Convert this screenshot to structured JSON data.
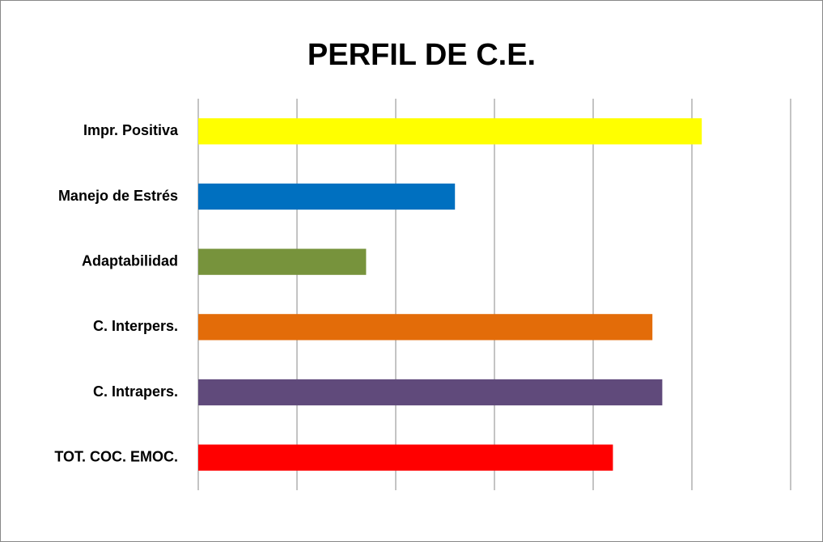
{
  "chart_data": {
    "type": "barh",
    "title": "PERFIL DE C.E.",
    "categories": [
      "Impr. Positiva",
      "Manejo de Estrés",
      "Adaptabilidad",
      "C. Interpers.",
      "C. Intrapers.",
      "TOT. COC. EMOC."
    ],
    "values": [
      5.1,
      2.6,
      1.7,
      4.6,
      4.7,
      4.2
    ],
    "colors": [
      "#ffff00",
      "#0070c0",
      "#77933c",
      "#e36c09",
      "#604a7b",
      "#ff0000"
    ],
    "xlim": [
      0,
      6
    ],
    "xticks": [
      0,
      1,
      2,
      3,
      4,
      5,
      6
    ],
    "grid": true
  }
}
